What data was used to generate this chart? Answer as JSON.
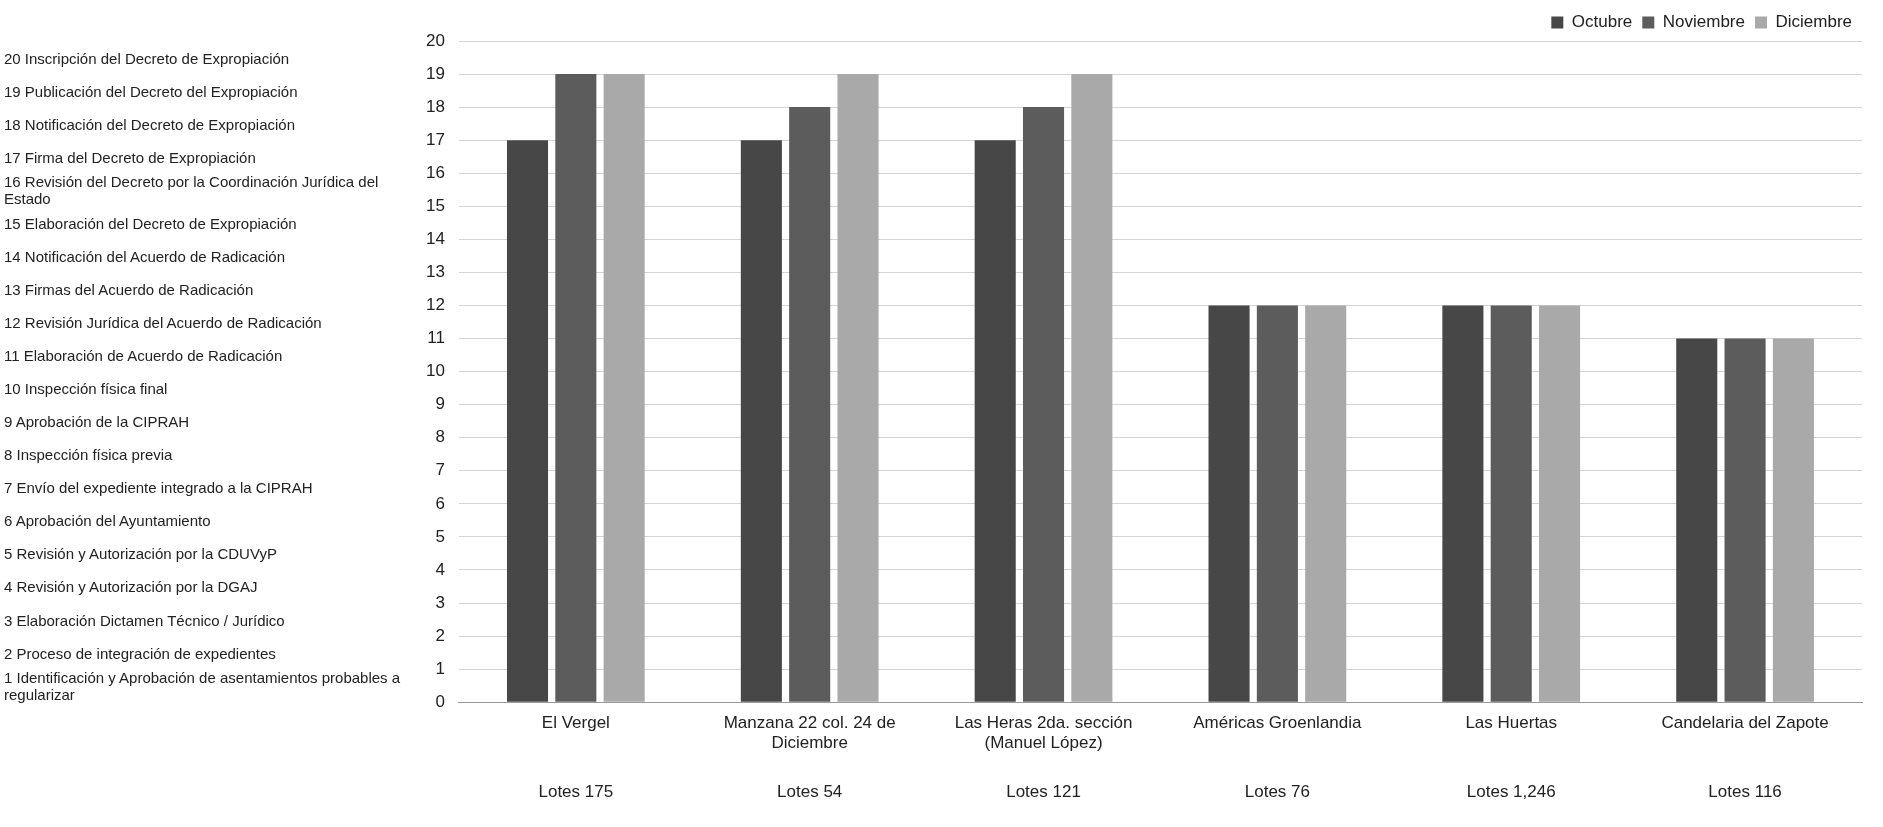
{
  "chart_data": {
    "type": "bar",
    "categories": [
      "El Vergel",
      "Manzana 22 col. 24 de Diciembre",
      "Las Heras 2da. sección (Manuel López)",
      "Américas Groenlandia",
      "Las Huertas",
      "Candelaria del Zapote"
    ],
    "series": [
      {
        "name": "Octubre",
        "color": "#474747",
        "values": [
          17,
          17,
          17,
          12,
          12,
          11
        ]
      },
      {
        "name": "Noviembre",
        "color": "#5c5c5c",
        "values": [
          19,
          18,
          18,
          12,
          12,
          11
        ]
      },
      {
        "name": "Diciembre",
        "color": "#a9a9a9",
        "values": [
          19,
          19,
          19,
          12,
          12,
          11
        ]
      }
    ],
    "ylim": [
      0,
      20
    ],
    "yticks": [
      0,
      1,
      2,
      3,
      4,
      5,
      6,
      7,
      8,
      9,
      10,
      11,
      12,
      13,
      14,
      15,
      16,
      17,
      18,
      19,
      20
    ],
    "grid": "y",
    "legend": "top right",
    "annotations": [
      "20 Inscripción del Decreto de Expropiación",
      "19 Publicación del Decreto del Expropiación",
      "18 Notificación del Decreto de Expropiación",
      "17 Firma del Decreto de Expropiación",
      "16 Revisión del Decreto por la Coordinación Jurídica del Estado",
      "15 Elaboración del Decreto de Expropiación",
      "14 Notificación del Acuerdo de Radicación",
      "13 Firmas del Acuerdo de Radicación",
      "12 Revisión Jurídica del Acuerdo de Radicación",
      "11 Elaboración de Acuerdo de Radicación",
      "10 Inspección física final",
      "9 Aprobación de la CIPRAH",
      "8 Inspección física previa",
      "7 Envío del expediente integrado a la CIPRAH",
      "6 Aprobación del Ayuntamiento",
      "5 Revisión y Autorización por la CDUVyP",
      "4 Revisión y Autorización por la DGAJ",
      "3 Elaboración Dictamen Técnico / Jurídico",
      "2 Proceso de integración de expedientes",
      "1 Identificación y Aprobación de asentamientos probables a regularizar",
      "Lotes 175",
      "Lotes 54",
      "Lotes 121",
      "Lotes 76",
      "Lotes 1,246",
      "Lotes 116"
    ]
  }
}
